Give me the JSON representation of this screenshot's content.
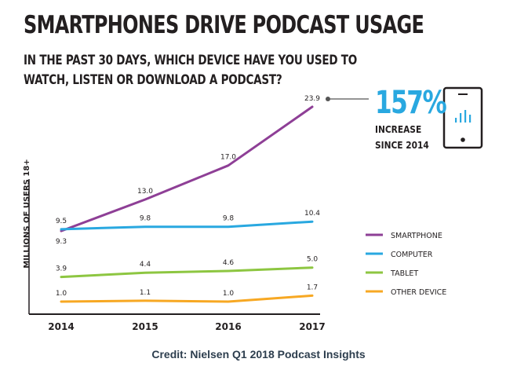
{
  "title": "SMARTPHONES DRIVE PODCAST USAGE",
  "subtitle": "IN THE PAST 30 DAYS, WHICH DEVICE HAVE YOU USED TO WATCH, LISTEN OR DOWNLOAD A PODCAST?",
  "callout": {
    "percent": "157%",
    "text": "INCREASE SINCE 2014",
    "icon": "smartphone-signal-icon",
    "accent": "#29a8e0"
  },
  "credit": "Credit: Nielsen Q1 2018 Podcast Insights",
  "chart_data": {
    "type": "line",
    "ylabel": "MILLIONS OF USERS 18+",
    "xlabel": "",
    "categories": [
      "2014",
      "2015",
      "2016",
      "2017"
    ],
    "ylim": [
      0,
      25
    ],
    "grid": false,
    "legend_position": "right",
    "series": [
      {
        "name": "SMARTPHONE",
        "color": "#8e3f96",
        "values": [
          9.3,
          13.0,
          17.0,
          23.9
        ],
        "labels": [
          "9.3",
          "13.0",
          "17.0",
          "23.9"
        ]
      },
      {
        "name": "COMPUTER",
        "color": "#29a8e0",
        "values": [
          9.5,
          9.8,
          9.8,
          10.4
        ],
        "labels": [
          "9.5",
          "9.8",
          "9.8",
          "10.4"
        ]
      },
      {
        "name": "TABLET",
        "color": "#8dc641",
        "values": [
          3.9,
          4.4,
          4.6,
          5.0
        ],
        "labels": [
          "3.9",
          "4.4",
          "4.6",
          "5.0"
        ]
      },
      {
        "name": "OTHER DEVICE",
        "color": "#f7a823",
        "values": [
          1.0,
          1.1,
          1.0,
          1.7
        ],
        "labels": [
          "1.0",
          "1.1",
          "1.0",
          "1.7"
        ]
      }
    ]
  }
}
